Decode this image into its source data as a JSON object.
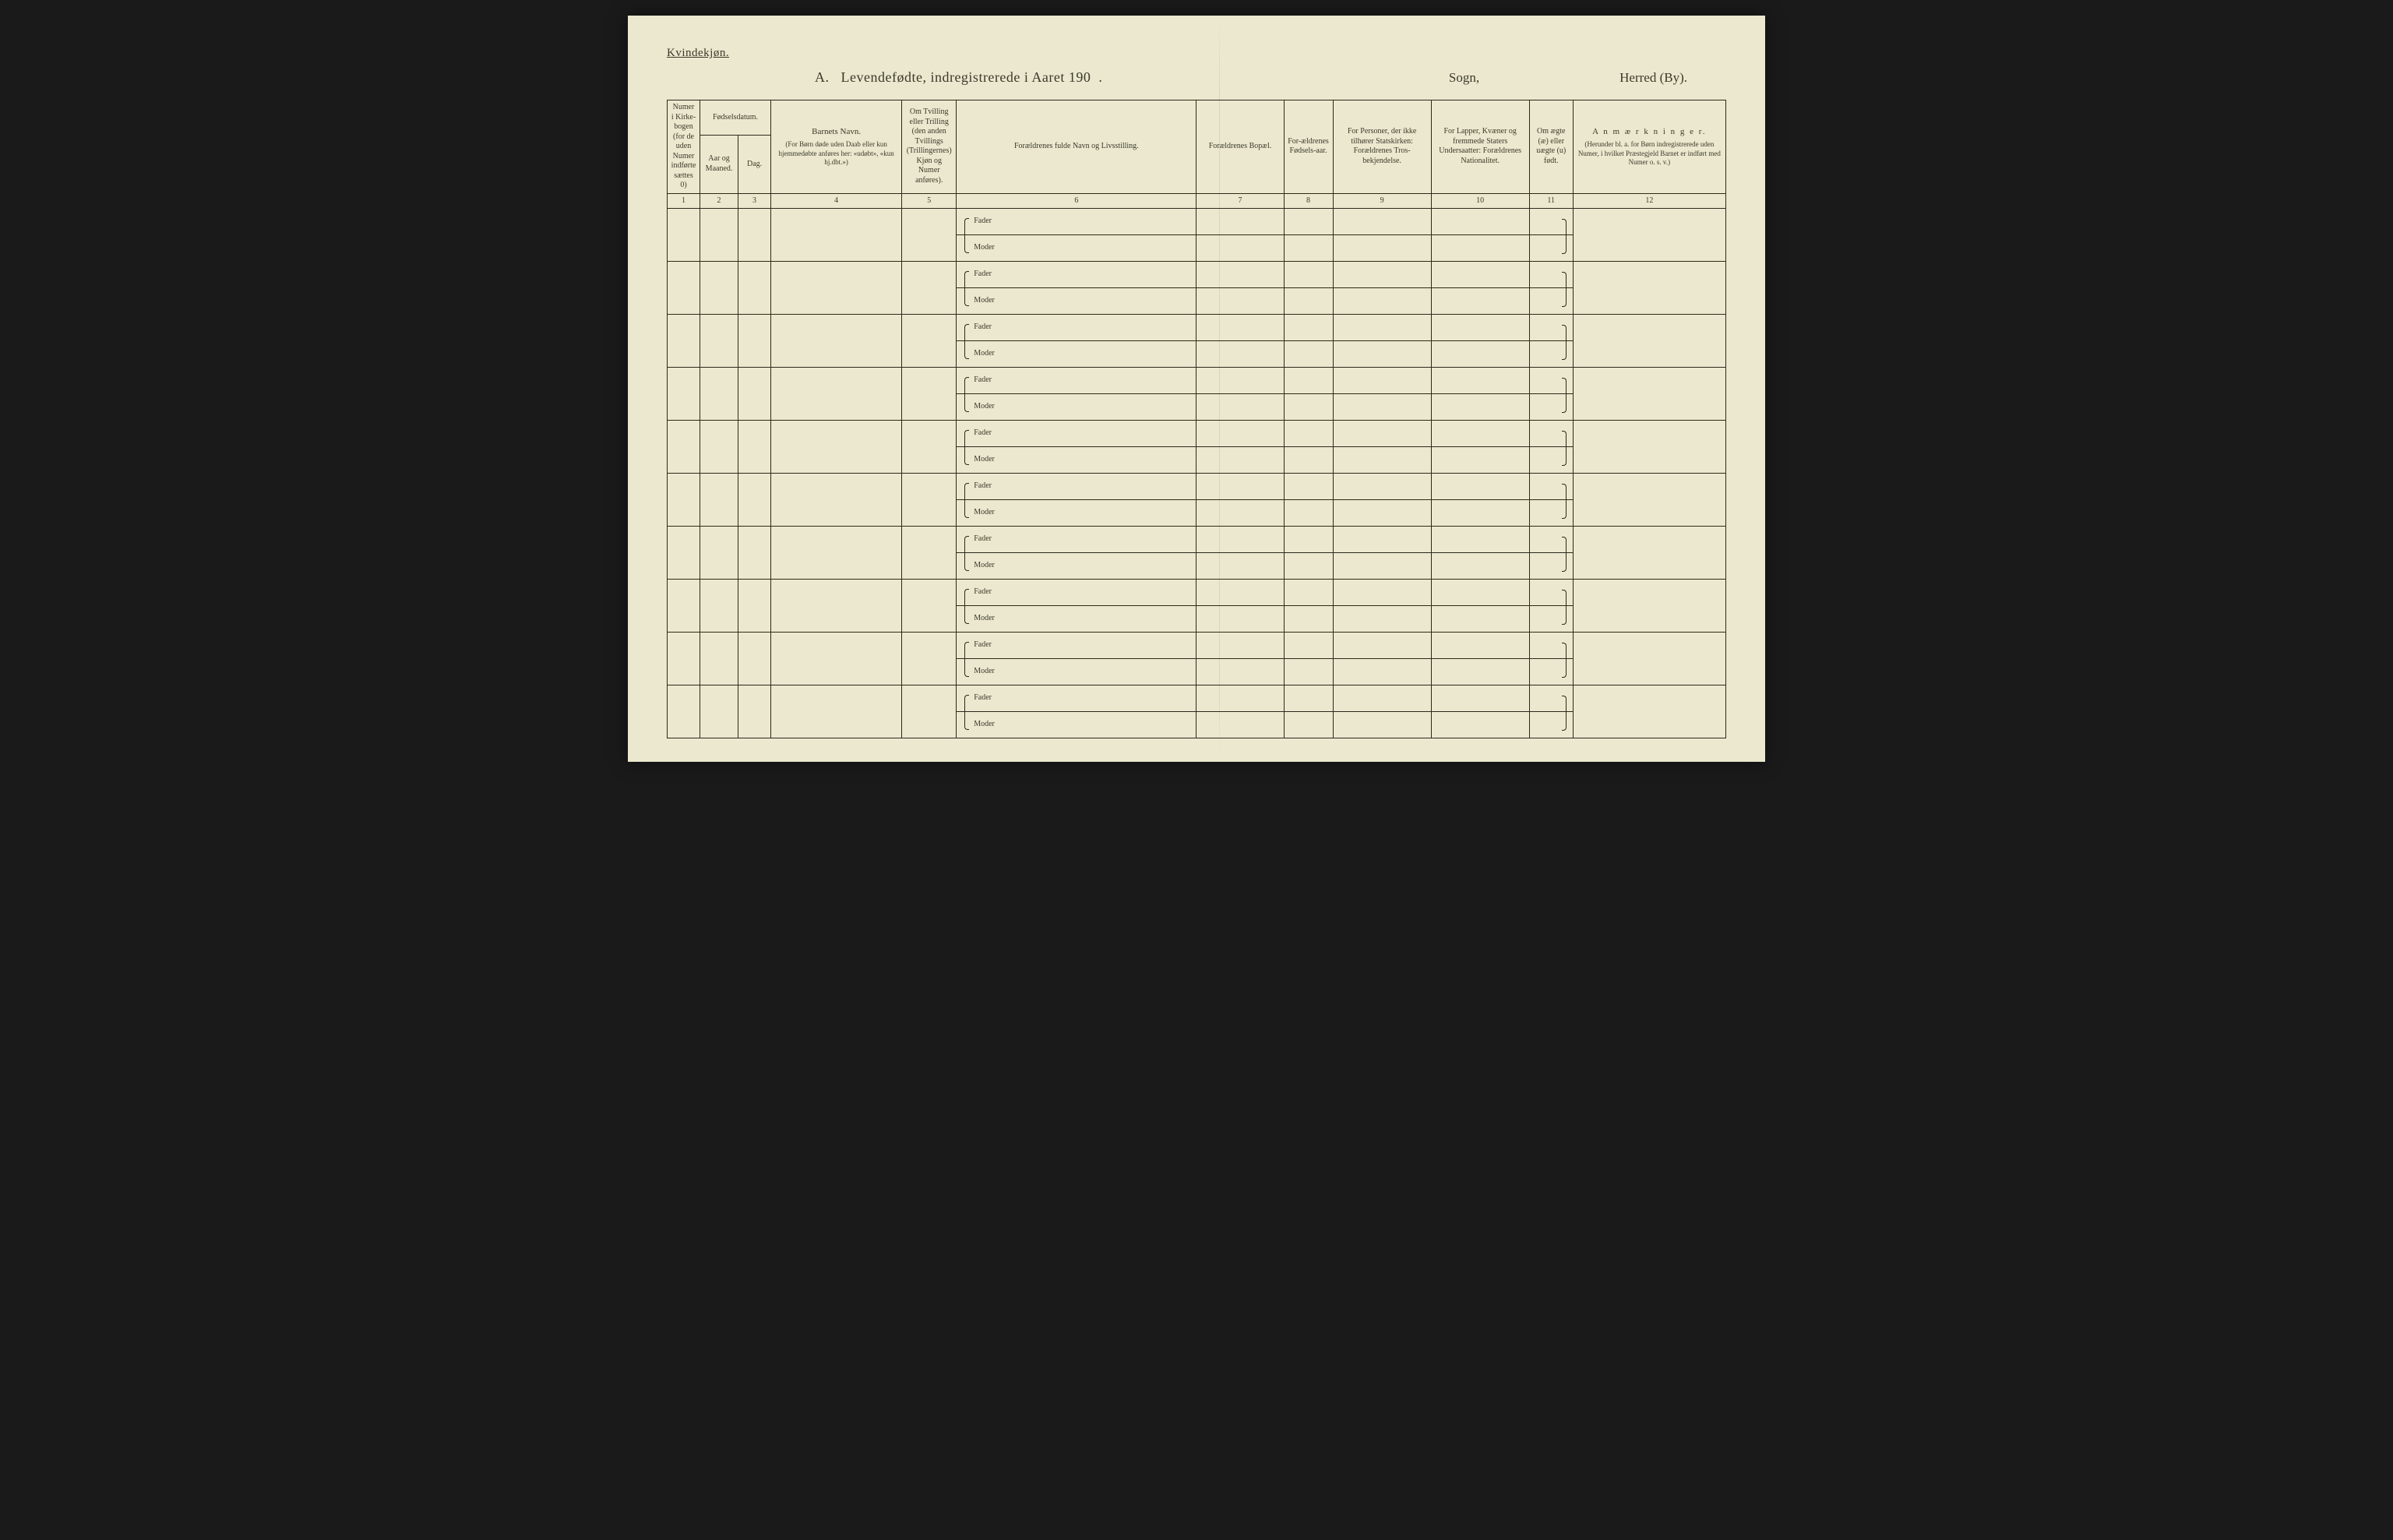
{
  "corner_label": "Kvindekjøn.",
  "title_prefix": "A.",
  "title_main": "Levendefødte, indregistrerede i Aaret 190  .",
  "title_sogn": "Sogn,",
  "title_herred": "Herred (By).",
  "columns": {
    "c1": {
      "header": "Numer i Kirke-bogen (for de uden Numer indførte sættes 0)",
      "num": "1",
      "width": "3%"
    },
    "c2": {
      "group": "Fødselsdatum.",
      "a": "Aar og Maaned.",
      "b": "Dag.",
      "num_a": "2",
      "num_b": "3",
      "width_a": "3.5%",
      "width_b": "3%"
    },
    "c4": {
      "main": "Barnets Navn.",
      "sub": "(For Børn døde uden Daab eller kun hjemmedøbte anføres her: «udøbt», «kun hj.dbt.»)",
      "num": "4",
      "width": "12%"
    },
    "c5": {
      "header": "Om Tvilling eller Trilling (den anden Tvillings (Trillingernes) Kjøn og Numer anføres).",
      "num": "5",
      "width": "5%"
    },
    "c6": {
      "header": "Forældrenes fulde Navn og Livsstilling.",
      "num": "6",
      "width": "22%"
    },
    "c7": {
      "header": "Forældrenes Bopæl.",
      "num": "7",
      "width": "8%"
    },
    "c8": {
      "header": "For-ældrenes Fødsels-aar.",
      "num": "8",
      "width": "4.5%"
    },
    "c9": {
      "header": "For Personer, der ikke tilhører Statskirken: Forældrenes Tros-bekjendelse.",
      "num": "9",
      "width": "9%"
    },
    "c10": {
      "header": "For Lapper, Kvæner og fremmede Staters Undersaatter: Forældrenes Nationalitet.",
      "num": "10",
      "width": "9%"
    },
    "c11": {
      "header": "Om ægte (æ) eller uægte (u) født.",
      "num": "11",
      "width": "4%"
    },
    "c12": {
      "main": "A n m æ r k n i n g e r.",
      "sub": "(Herunder bl. a. for Børn indregistrerede uden Numer, i hvilket Præstegjeld Barnet er indført med Numer o. s. v.)",
      "num": "12",
      "width": "14%"
    }
  },
  "parent_labels": {
    "father": "Fader",
    "mother": "Moder"
  },
  "row_count": 10,
  "colors": {
    "paper": "#ece8cf",
    "ink": "#2a2a1a",
    "text": "#3a3a2a",
    "background": "#1a1a1a"
  },
  "fonts": {
    "body_family": "Georgia, 'Times New Roman', serif",
    "title_size_pt": 18,
    "header_size_pt": 10,
    "cell_size_pt": 10
  }
}
